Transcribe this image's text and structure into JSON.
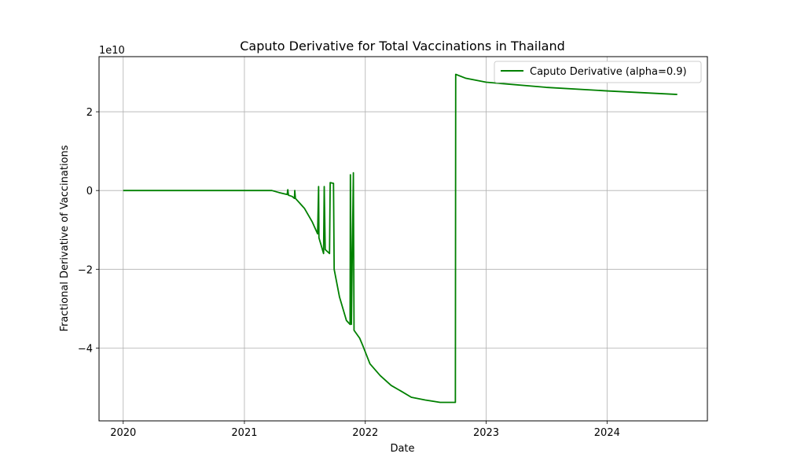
{
  "chart_data": {
    "type": "line",
    "title": "Caputo Derivative for Total Vaccinations in Thailand",
    "xlabel": "Date",
    "ylabel": "Fractional Derivative of Vaccinations",
    "y_scale_label": "1e10",
    "x_ticks": [
      "2020",
      "2021",
      "2022",
      "2023",
      "2024"
    ],
    "y_ticks": [
      {
        "value": -4,
        "label": "−4"
      },
      {
        "value": -2,
        "label": "−2"
      },
      {
        "value": 0,
        "label": "0"
      },
      {
        "value": 2,
        "label": "2"
      }
    ],
    "xlim": [
      "2019-10-20",
      "2024-10-30"
    ],
    "ylim": [
      -5.85,
      3.4
    ],
    "grid": true,
    "legend": "top-right",
    "series": [
      {
        "name": "Caputo Derivative (alpha=0.9)",
        "color": "#008000",
        "points": [
          [
            "2020-01-01",
            0
          ],
          [
            "2021-01-01",
            0
          ],
          [
            "2021-03-25",
            0
          ],
          [
            "2021-04-15",
            -0.05
          ],
          [
            "2021-05-10",
            -0.1
          ],
          [
            "2021-05-12",
            0.02
          ],
          [
            "2021-05-14",
            -0.12
          ],
          [
            "2021-05-25",
            -0.15
          ],
          [
            "2021-06-01",
            -0.2
          ],
          [
            "2021-06-02",
            0.0
          ],
          [
            "2021-06-04",
            -0.2
          ],
          [
            "2021-07-01",
            -0.45
          ],
          [
            "2021-07-25",
            -0.8
          ],
          [
            "2021-08-10",
            -1.1
          ],
          [
            "2021-08-13",
            0.1
          ],
          [
            "2021-08-14",
            -1.2
          ],
          [
            "2021-08-28",
            -1.6
          ],
          [
            "2021-08-30",
            0.1
          ],
          [
            "2021-09-02",
            -1.5
          ],
          [
            "2021-09-15",
            -1.6
          ],
          [
            "2021-09-17",
            0.2
          ],
          [
            "2021-09-27",
            0.18
          ],
          [
            "2021-09-29",
            -2.0
          ],
          [
            "2021-10-15",
            -2.7
          ],
          [
            "2021-11-05",
            -3.3
          ],
          [
            "2021-11-16",
            -3.4
          ],
          [
            "2021-11-17",
            0.4
          ],
          [
            "2021-11-20",
            -3.4
          ],
          [
            "2021-11-26",
            0.45
          ],
          [
            "2021-11-28",
            -3.55
          ],
          [
            "2021-12-15",
            -3.75
          ],
          [
            "2021-12-25",
            -3.95
          ],
          [
            "2022-01-15",
            -4.4
          ],
          [
            "2022-02-15",
            -4.7
          ],
          [
            "2022-03-20",
            -4.95
          ],
          [
            "2022-04-20",
            -5.1
          ],
          [
            "2022-05-20",
            -5.25
          ],
          [
            "2022-07-01",
            -5.32
          ],
          [
            "2022-08-15",
            -5.38
          ],
          [
            "2022-09-30",
            -5.38
          ],
          [
            "2022-10-01",
            2.95
          ],
          [
            "2022-11-01",
            2.85
          ],
          [
            "2023-01-01",
            2.75
          ],
          [
            "2023-07-01",
            2.62
          ],
          [
            "2024-01-01",
            2.53
          ],
          [
            "2024-07-31",
            2.44
          ]
        ]
      }
    ]
  }
}
